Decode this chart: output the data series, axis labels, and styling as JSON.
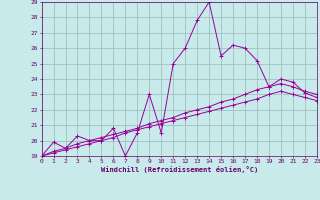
{
  "xlabel": "Windchill (Refroidissement éolien,°C)",
  "bg_color": "#c8eaea",
  "grid_color": "#9ab8b8",
  "line_color": "#990099",
  "xlim": [
    0,
    23
  ],
  "ylim": [
    19,
    29
  ],
  "yticks": [
    19,
    20,
    21,
    22,
    23,
    24,
    25,
    26,
    27,
    28,
    29
  ],
  "xticks": [
    0,
    1,
    2,
    3,
    4,
    5,
    6,
    7,
    8,
    9,
    10,
    11,
    12,
    13,
    14,
    15,
    16,
    17,
    18,
    19,
    20,
    21,
    22,
    23
  ],
  "series1_x": [
    0,
    1,
    2,
    3,
    4,
    5,
    6,
    7,
    8,
    9,
    10,
    11,
    12,
    13,
    14,
    15,
    16,
    17,
    18,
    19,
    20,
    21,
    22,
    23
  ],
  "series1_y": [
    19.0,
    19.9,
    19.5,
    20.3,
    20.0,
    20.0,
    20.8,
    19.0,
    20.5,
    23.0,
    20.5,
    25.0,
    26.0,
    27.8,
    29.0,
    25.5,
    26.2,
    26.0,
    25.2,
    23.5,
    24.0,
    23.8,
    23.1,
    22.8
  ],
  "series2_x": [
    0,
    1,
    2,
    3,
    4,
    5,
    6,
    7,
    8,
    9,
    10,
    11,
    12,
    13,
    14,
    15,
    16,
    17,
    18,
    19,
    20,
    21,
    22,
    23
  ],
  "series2_y": [
    19.0,
    19.2,
    19.4,
    19.6,
    19.8,
    20.0,
    20.2,
    20.5,
    20.7,
    20.9,
    21.1,
    21.3,
    21.5,
    21.7,
    21.9,
    22.1,
    22.3,
    22.5,
    22.7,
    23.0,
    23.2,
    23.0,
    22.8,
    22.6
  ],
  "series3_x": [
    0,
    1,
    2,
    3,
    4,
    5,
    6,
    7,
    8,
    9,
    10,
    11,
    12,
    13,
    14,
    15,
    16,
    17,
    18,
    19,
    20,
    21,
    22,
    23
  ],
  "series3_y": [
    19.0,
    19.3,
    19.5,
    19.8,
    20.0,
    20.2,
    20.4,
    20.6,
    20.8,
    21.1,
    21.3,
    21.5,
    21.8,
    22.0,
    22.2,
    22.5,
    22.7,
    23.0,
    23.3,
    23.5,
    23.7,
    23.5,
    23.2,
    23.0
  ]
}
